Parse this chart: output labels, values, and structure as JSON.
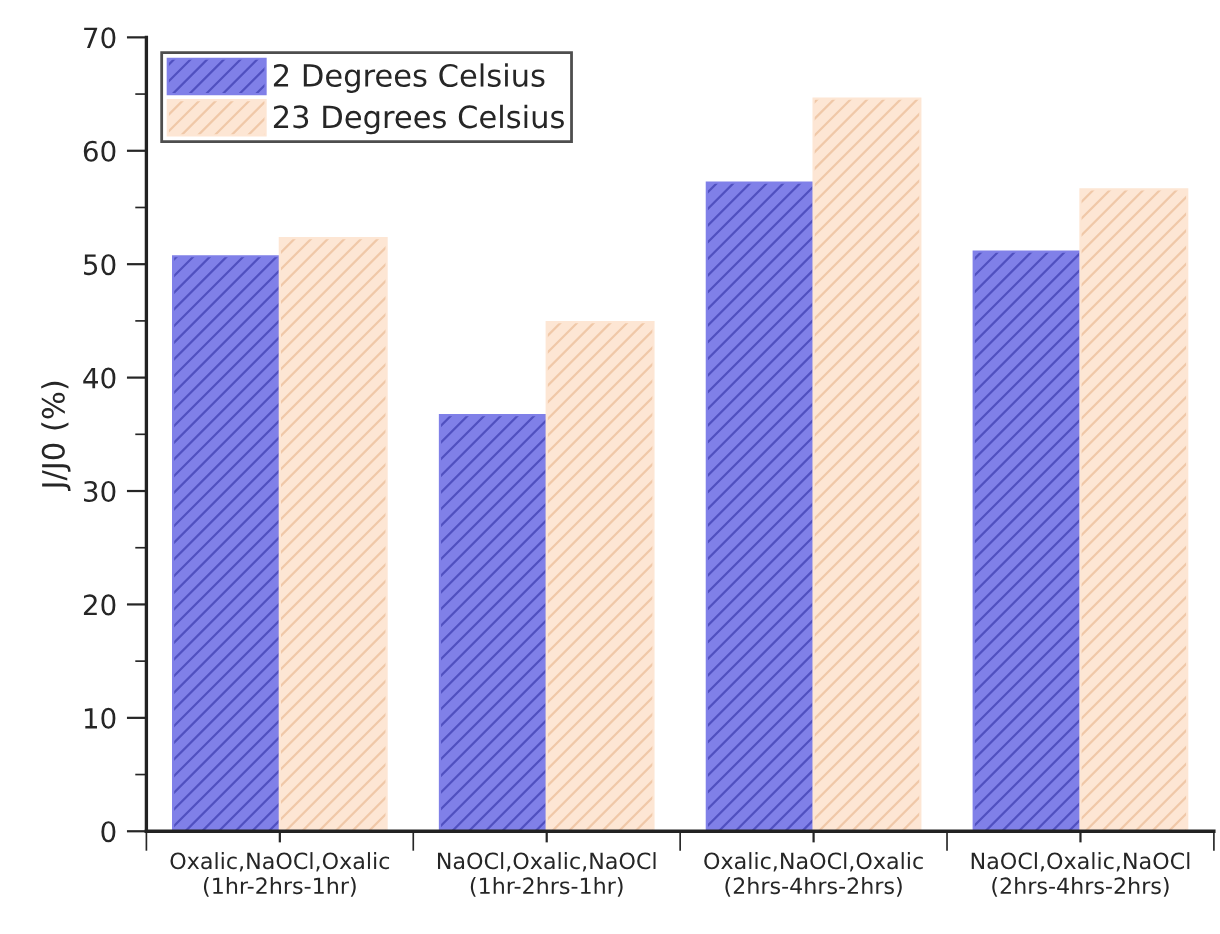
{
  "chart_data": {
    "type": "bar",
    "ylabel": "J/J0 (%)",
    "categories": [
      "Oxalic,NaOCl,Oxalic\n(1hr-2hrs-1hr)",
      "NaOCl,Oxalic,NaOCl\n(1hr-2hrs-1hr)",
      "Oxalic,NaOCl,Oxalic\n(2hrs-4hrs-2hrs)",
      "NaOCl,Oxalic,NaOCl\n(2hrs-4hrs-2hrs)"
    ],
    "series": [
      {
        "name": "2 Degrees Celsius",
        "color": "#8080e8",
        "values": [
          50.7,
          36.7,
          57.2,
          51.1
        ]
      },
      {
        "name": "23 Degrees Celsius",
        "color": "#fde6d4",
        "values": [
          52.3,
          44.9,
          64.6,
          56.6
        ]
      }
    ],
    "ylim": [
      0,
      70
    ],
    "yticks": [
      0,
      10,
      20,
      30,
      40,
      50,
      60,
      70
    ],
    "grid": false,
    "legend": "top left"
  }
}
